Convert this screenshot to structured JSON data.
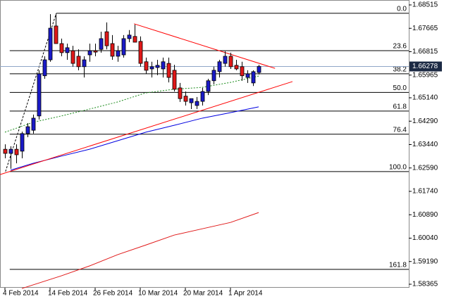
{
  "chart_data": {
    "type": "candlestick",
    "categories": [
      "4 Feb 2014",
      null,
      null,
      null,
      null,
      null,
      null,
      null,
      "14 Feb 2014",
      null,
      null,
      null,
      null,
      null,
      null,
      null,
      "26 Feb 2014",
      null,
      null,
      null,
      null,
      null,
      null,
      null,
      "10 Mar 2014",
      null,
      null,
      null,
      null,
      null,
      null,
      null,
      "20 Mar 2014",
      null,
      null,
      null,
      null,
      null,
      null,
      null,
      "1 Apr 2014",
      null,
      null,
      null,
      null,
      null
    ],
    "open": [
      1.6327,
      1.6312,
      1.6327,
      1.632,
      1.6384,
      1.6396,
      1.6448,
      1.6594,
      1.6652,
      1.6775,
      1.6711,
      1.6678,
      1.6685,
      1.6665,
      1.6627,
      1.667,
      1.6685,
      1.669,
      1.6754,
      1.6711,
      1.6665,
      1.667,
      1.6729,
      1.6737,
      1.6719,
      1.6645,
      1.6619,
      1.6624,
      1.6619,
      1.6639,
      1.6614,
      1.655,
      1.652,
      1.6496,
      1.6486,
      1.6501,
      1.6537,
      1.6576,
      1.6609,
      1.6639,
      1.6665,
      1.6632,
      1.6627,
      1.6588,
      1.6568,
      1.6606
    ],
    "high": [
      1.6345,
      1.6338,
      1.6345,
      1.6391,
      1.6422,
      1.6453,
      1.6614,
      1.6665,
      1.6818,
      1.6818,
      1.6729,
      1.6711,
      1.6703,
      1.669,
      1.6665,
      1.6711,
      1.6711,
      1.6754,
      1.6788,
      1.6742,
      1.6703,
      1.6742,
      1.676,
      1.678,
      1.6737,
      1.666,
      1.6645,
      1.6652,
      1.666,
      1.666,
      1.6634,
      1.6568,
      1.6537,
      1.6511,
      1.6517,
      1.655,
      1.6583,
      1.6627,
      1.6652,
      1.6683,
      1.6678,
      1.6652,
      1.6645,
      1.6614,
      1.6614,
      1.6634
    ],
    "low": [
      1.6294,
      1.6256,
      1.6276,
      1.6294,
      1.6371,
      1.6384,
      1.6435,
      1.6583,
      1.6645,
      1.6716,
      1.6665,
      1.6652,
      1.6627,
      1.6614,
      1.6588,
      1.6645,
      1.6665,
      1.6678,
      1.669,
      1.6652,
      1.6645,
      1.666,
      1.6716,
      1.6716,
      1.6627,
      1.6601,
      1.6588,
      1.6596,
      1.6588,
      1.657,
      1.6537,
      1.6499,
      1.6486,
      1.6473,
      1.6473,
      1.6486,
      1.6524,
      1.6563,
      1.6588,
      1.6627,
      1.6619,
      1.6614,
      1.6576,
      1.6568,
      1.6557,
      1.6599
    ],
    "close": [
      1.6312,
      1.6327,
      1.6307,
      1.6384,
      1.6409,
      1.644,
      1.6601,
      1.6652,
      1.6767,
      1.6711,
      1.6678,
      1.6696,
      1.6639,
      1.6627,
      1.6652,
      1.6685,
      1.668,
      1.6729,
      1.6703,
      1.6665,
      1.6685,
      1.6729,
      1.6742,
      1.6716,
      1.6639,
      1.6614,
      1.6627,
      1.6632,
      1.6645,
      1.6588,
      1.6545,
      1.6511,
      1.6501,
      1.6511,
      1.6501,
      1.6537,
      1.6576,
      1.6614,
      1.6645,
      1.6665,
      1.6627,
      1.6619,
      1.6594,
      1.6601,
      1.6609,
      1.66278
    ],
    "up_color": "#1a1ac8",
    "down_color": "#e01818",
    "xlim": [
      -0.875,
      71.625
    ],
    "ylim": [
      1.58365,
      1.68515
    ],
    "yticks": [
      1.68515,
      1.67665,
      1.66815,
      1.65965,
      {
        "value": 1.6514,
        "label": "1.65140"
      },
      {
        "value": 1.6429,
        "label": "1.64290"
      },
      {
        "value": 1.6344,
        "label": "1.63440"
      },
      {
        "value": 1.6259,
        "label": "1.62590"
      },
      {
        "value": 1.6174,
        "label": "1.61740"
      },
      {
        "value": 1.6089,
        "label": "1.60890"
      },
      {
        "value": 1.6004,
        "label": "1.60040"
      },
      {
        "value": 1.5919,
        "label": "1.59190"
      },
      1.58365
    ],
    "last_price": 1.66278,
    "indicators": [
      {
        "color": "#1a8a1a",
        "dashed": true,
        "x": [
          0,
          5,
          10,
          15,
          20,
          25,
          30,
          35,
          40,
          45
        ],
        "values": [
          1.6389,
          1.6425,
          1.6448,
          1.6473,
          1.6499,
          1.6532,
          1.6545,
          1.6552,
          1.657,
          1.6593
        ]
      },
      {
        "color": "#0000e0",
        "dashed": false,
        "x": [
          1,
          5,
          10,
          15,
          20,
          25,
          30,
          35,
          40,
          45
        ],
        "values": [
          1.6251,
          1.6276,
          1.6302,
          1.6327,
          1.6358,
          1.6389,
          1.6414,
          1.644,
          1.646,
          1.6481
        ]
      },
      {
        "color": "#e01818",
        "dashed": false,
        "x": [
          3,
          10,
          15,
          20,
          25,
          30,
          35,
          40,
          45
        ],
        "values": [
          1.5821,
          1.5867,
          1.5903,
          1.5944,
          1.5979,
          1.6015,
          1.6038,
          1.6061,
          1.6097
        ]
      }
    ],
    "trendlines": [
      {
        "color": "#ff0000",
        "x": [
          22.9,
          47.9
        ],
        "values": [
          1.6783,
          1.6621
        ]
      },
      {
        "color": "#ff0000",
        "x": [
          -0.875,
          51
        ],
        "values": [
          1.6235,
          1.6573
        ]
      }
    ],
    "fibonacci": {
      "x": [
        0.1,
        9.1
      ],
      "values": [
        1.6246,
        1.6821
      ],
      "levels": [
        {
          "value": 0,
          "label": "0.0"
        },
        23.6,
        38.2,
        {
          "value": 50,
          "label": "50.0"
        },
        61.8,
        76.4,
        {
          "value": 100,
          "label": "100.0"
        },
        161.8
      ]
    }
  }
}
